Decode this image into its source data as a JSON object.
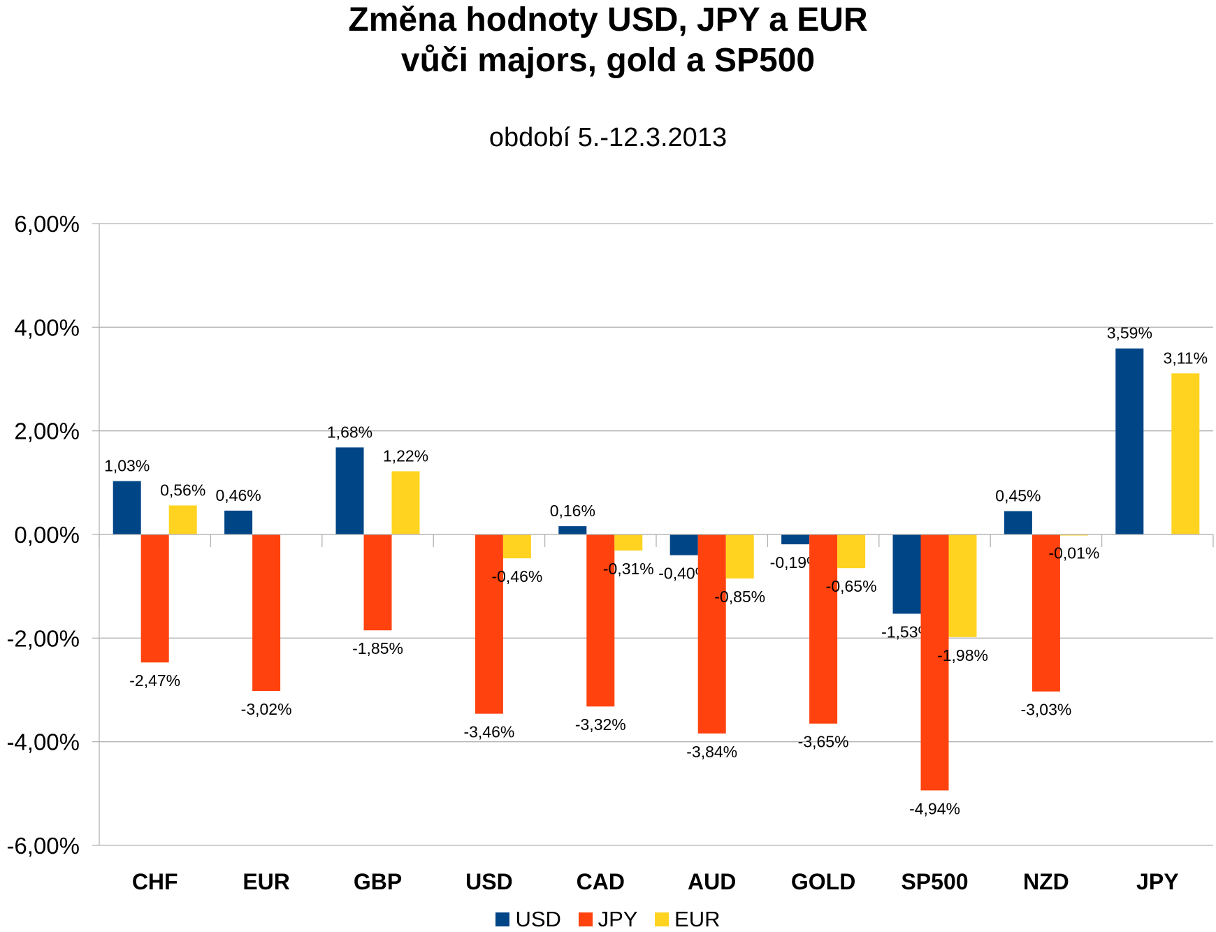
{
  "chart_data": {
    "type": "bar",
    "title_line1": "Změna hodnoty USD, JPY a EUR",
    "title_line2": "vůči majors, gold a SP500",
    "subtitle": "období 5.-12.3.2013",
    "categories": [
      "CHF",
      "EUR",
      "GBP",
      "USD",
      "CAD",
      "AUD",
      "GOLD",
      "SP500",
      "NZD",
      "JPY"
    ],
    "series": [
      {
        "name": "USD",
        "color": "#004586",
        "values": [
          1.03,
          0.46,
          1.68,
          null,
          0.16,
          -0.4,
          -0.19,
          -1.53,
          0.45,
          3.59
        ],
        "labels": [
          "1,03%",
          "0,46%",
          "1,68%",
          "",
          "0,16%",
          "-0,40%",
          "-0,19%",
          "-1,53%",
          "0,45%",
          "3,59%"
        ]
      },
      {
        "name": "JPY",
        "color": "#ff420e",
        "values": [
          -2.47,
          -3.02,
          -1.85,
          -3.46,
          -3.32,
          -3.84,
          -3.65,
          -4.94,
          -3.03,
          null
        ],
        "labels": [
          "-2,47%",
          "-3,02%",
          "-1,85%",
          "-3,46%",
          "-3,32%",
          "-3,84%",
          "-3,65%",
          "-4,94%",
          "-3,03%",
          ""
        ]
      },
      {
        "name": "EUR",
        "color": "#ffd320",
        "values": [
          0.56,
          null,
          1.22,
          -0.46,
          -0.31,
          -0.85,
          -0.65,
          -1.98,
          -0.01,
          3.11
        ],
        "labels": [
          "0,56%",
          "",
          "1,22%",
          "-0,46%",
          "-0,31%",
          "-0,85%",
          "-0,65%",
          "-1,98%",
          "-0,01%",
          "3,11%"
        ]
      }
    ],
    "yticks": [
      "6,00%",
      "4,00%",
      "2,00%",
      "0,00%",
      "-2,00%",
      "-4,00%",
      "-6,00%"
    ],
    "ylim": [
      -6,
      6
    ],
    "grid": true,
    "legend_position": "bottom"
  }
}
